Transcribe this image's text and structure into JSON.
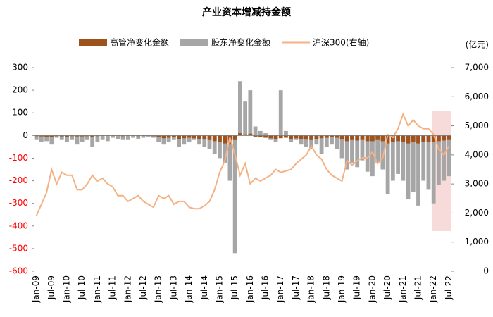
{
  "chart_data": {
    "type": "bar-line",
    "title": "产业资本增减持金额",
    "y2_label": "(亿元)",
    "categories": [
      "Jan-09",
      null,
      null,
      "Jul-09",
      null,
      null,
      "Jan-10",
      null,
      null,
      "Jul-10",
      null,
      null,
      "Jan-11",
      null,
      null,
      "Jul-11",
      null,
      null,
      "Jan-12",
      null,
      null,
      "Jul-12",
      null,
      null,
      "Jan-13",
      null,
      null,
      "Jul-13",
      null,
      null,
      "Jan-14",
      null,
      null,
      "Jul-14",
      null,
      null,
      "Jan-15",
      null,
      null,
      "Jul-15",
      null,
      null,
      "Jan-16",
      null,
      null,
      "Jul-16",
      null,
      null,
      "Jan-17",
      null,
      null,
      "Jul-17",
      null,
      null,
      "Jan-18",
      null,
      null,
      "Jul-18",
      null,
      null,
      "Jan-19",
      null,
      null,
      "Jul-19",
      null,
      null,
      "Jan-20",
      null,
      null,
      "Jul-20",
      null,
      null,
      "Jan-21",
      null,
      null,
      "Jul-21",
      null,
      null,
      "Jan-22",
      null,
      null,
      "Jul-22"
    ],
    "series": [
      {
        "name": "高管净变化金额",
        "color": "#a0521d",
        "kind": "bar",
        "values": [
          -3,
          -4,
          -5,
          -6,
          -3,
          -4,
          -5,
          -3,
          -4,
          -4,
          -3,
          -5,
          -3,
          -2,
          -2,
          -2,
          -2,
          -3,
          -2,
          -2,
          -3,
          -2,
          -2,
          -3,
          -8,
          -12,
          -10,
          -8,
          -15,
          -12,
          -10,
          -12,
          -15,
          -18,
          -20,
          -25,
          -30,
          -35,
          -40,
          -20,
          10,
          5,
          8,
          -5,
          -8,
          -10,
          -12,
          -15,
          -12,
          -10,
          -15,
          -12,
          -15,
          -18,
          -20,
          -15,
          -12,
          -10,
          -8,
          -10,
          -18,
          -25,
          -20,
          -22,
          -20,
          -25,
          -25,
          -20,
          -25,
          -35,
          -30,
          -25,
          -30,
          -35,
          -30,
          -35,
          -28,
          -30,
          -30,
          -25,
          -22,
          -20
        ]
      },
      {
        "name": "股东净变化金额",
        "color": "#a6a6a6",
        "kind": "bar",
        "values": [
          -20,
          -30,
          -25,
          -40,
          -10,
          -20,
          -30,
          -20,
          -40,
          -30,
          -20,
          -50,
          -30,
          -20,
          -25,
          -10,
          -15,
          -20,
          -20,
          -10,
          -15,
          -10,
          -5,
          -10,
          -30,
          -40,
          -30,
          -20,
          -50,
          -40,
          -30,
          -20,
          -40,
          -50,
          -60,
          -80,
          -100,
          -120,
          -200,
          -520,
          240,
          150,
          200,
          40,
          20,
          10,
          -20,
          -30,
          200,
          20,
          -30,
          -20,
          -40,
          -50,
          -60,
          -40,
          -80,
          -50,
          -40,
          -60,
          -100,
          -150,
          -120,
          -140,
          -110,
          -160,
          -180,
          -120,
          -150,
          -260,
          -200,
          -170,
          -200,
          -280,
          -250,
          -310,
          -200,
          -240,
          -300,
          -220,
          -200,
          -180
        ]
      },
      {
        "name": "沪深300(右轴)",
        "color": "#f4b183",
        "kind": "line",
        "axis": "y2",
        "values": [
          1900,
          2300,
          2700,
          3500,
          3000,
          3400,
          3300,
          3300,
          2800,
          2800,
          3000,
          3300,
          3100,
          3200,
          3000,
          2900,
          2600,
          2600,
          2400,
          2500,
          2600,
          2400,
          2300,
          2200,
          2600,
          2500,
          2600,
          2300,
          2400,
          2400,
          2200,
          2150,
          2150,
          2250,
          2400,
          2800,
          3400,
          3800,
          4600,
          4000,
          3300,
          3700,
          3000,
          3200,
          3100,
          3200,
          3300,
          3500,
          3400,
          3450,
          3500,
          3700,
          3850,
          4000,
          4300,
          4000,
          3850,
          3500,
          3300,
          3200,
          3100,
          3800,
          3650,
          3800,
          3900,
          3900,
          4100,
          3700,
          3900,
          4700,
          4600,
          4900,
          5400,
          5000,
          5200,
          5000,
          4900,
          4900,
          4700,
          4200,
          4000,
          4300
        ]
      }
    ],
    "ylim": [
      -600,
      300
    ],
    "yticks": [
      -600,
      -500,
      -400,
      -300,
      -200,
      -100,
      0,
      100,
      200,
      300
    ],
    "y2lim": [
      0,
      7000
    ],
    "y2ticks": [
      0,
      {
        "value": 1000,
        "label": "1,000"
      },
      {
        "value": 2000,
        "label": "2,000"
      },
      {
        "value": 3000,
        "label": "3,000"
      },
      {
        "value": 4000,
        "label": "4,000"
      },
      {
        "value": 5000,
        "label": "5,000"
      },
      {
        "value": 6000,
        "label": "6,000"
      },
      {
        "value": 7000,
        "label": "7,000"
      }
    ],
    "tick_color": "#000000",
    "negative_tick_color": "#ff0000"
  }
}
